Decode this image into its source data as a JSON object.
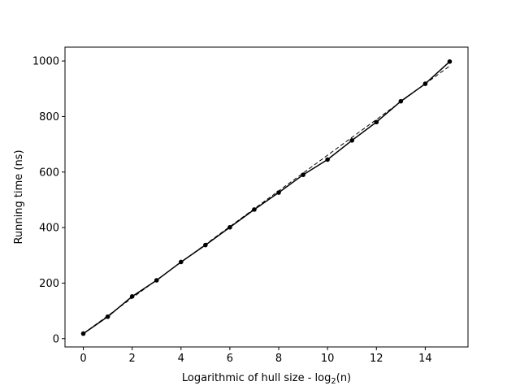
{
  "chart_data": {
    "type": "line",
    "title": "",
    "xlabel_prefix": "Logarithmic of hull size - log",
    "xlabel_sub": "2",
    "xlabel_suffix": "(n)",
    "ylabel": "Running time (ns)",
    "xlim": [
      -0.75,
      15.75
    ],
    "ylim": [
      -30,
      1050
    ],
    "xticks": [
      0,
      2,
      4,
      6,
      8,
      10,
      12,
      14
    ],
    "yticks": [
      0,
      200,
      400,
      600,
      800,
      1000
    ],
    "grid": false,
    "legend": "none",
    "series": [
      {
        "style": "solid",
        "marker": "circle",
        "color": "#000000",
        "x": [
          0,
          1,
          2,
          3,
          4,
          5,
          6,
          7,
          8,
          9,
          10,
          11,
          12,
          13,
          14,
          15
        ],
        "y": [
          18,
          79,
          152,
          210,
          276,
          337,
          401,
          465,
          526,
          590,
          645,
          714,
          780,
          855,
          918,
          998
        ]
      },
      {
        "style": "dashed",
        "marker": "none",
        "color": "#000000",
        "x": [
          0,
          15
        ],
        "y": [
          18,
          982
        ]
      }
    ]
  }
}
